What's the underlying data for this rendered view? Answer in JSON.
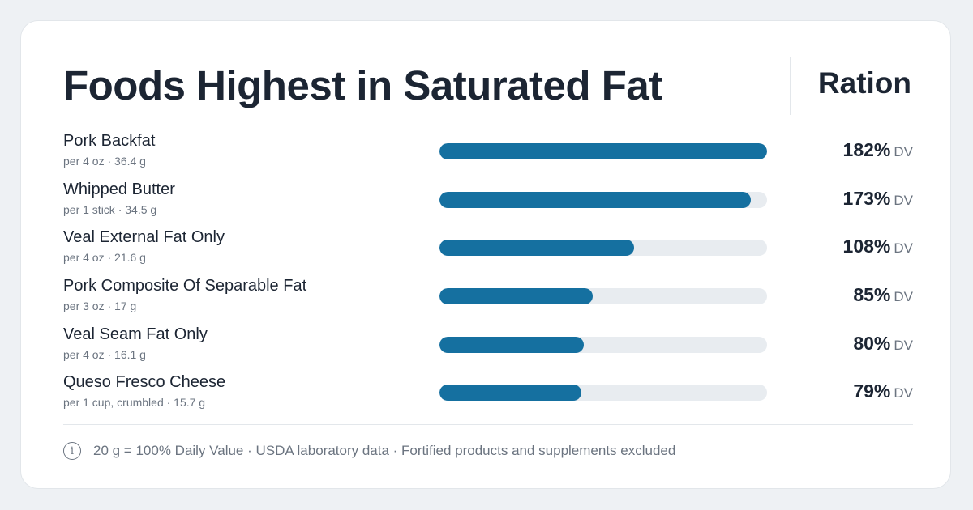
{
  "header": {
    "title": "Foods Highest in Saturated Fat",
    "brand": "Ration"
  },
  "chart_data": {
    "type": "bar",
    "orientation": "horizontal",
    "title": "Foods Highest in Saturated Fat",
    "xlim": [
      0,
      182
    ],
    "unit": "% DV",
    "items": [
      {
        "name": "Pork Backfat",
        "serving": "per 4 oz · 36.4 g",
        "value": 182,
        "value_label": "182%",
        "unit_label": "DV"
      },
      {
        "name": "Whipped Butter",
        "serving": "per 1 stick · 34.5 g",
        "value": 173,
        "value_label": "173%",
        "unit_label": "DV"
      },
      {
        "name": "Veal External Fat Only",
        "serving": "per 4 oz · 21.6 g",
        "value": 108,
        "value_label": "108%",
        "unit_label": "DV"
      },
      {
        "name": "Pork Composite Of Separable Fat",
        "serving": "per 3 oz · 17 g",
        "value": 85,
        "value_label": "85%",
        "unit_label": "DV"
      },
      {
        "name": "Veal Seam Fat Only",
        "serving": "per 4 oz · 16.1 g",
        "value": 80,
        "value_label": "80%",
        "unit_label": "DV"
      },
      {
        "name": "Queso Fresco Cheese",
        "serving": "per 1 cup, crumbled · 15.7 g",
        "value": 79,
        "value_label": "79%",
        "unit_label": "DV"
      }
    ]
  },
  "footer": {
    "info_icon": "info-icon",
    "info_glyph": "i",
    "note": "20 g = 100% Daily Value · USDA laboratory data · Fortified products and supplements excluded"
  },
  "colors": {
    "bar_fill": "#1570a0",
    "bar_track": "#e8ecf0",
    "text_primary": "#1c2533",
    "text_secondary": "#6b7480",
    "background": "#eef1f4",
    "card": "#ffffff"
  }
}
